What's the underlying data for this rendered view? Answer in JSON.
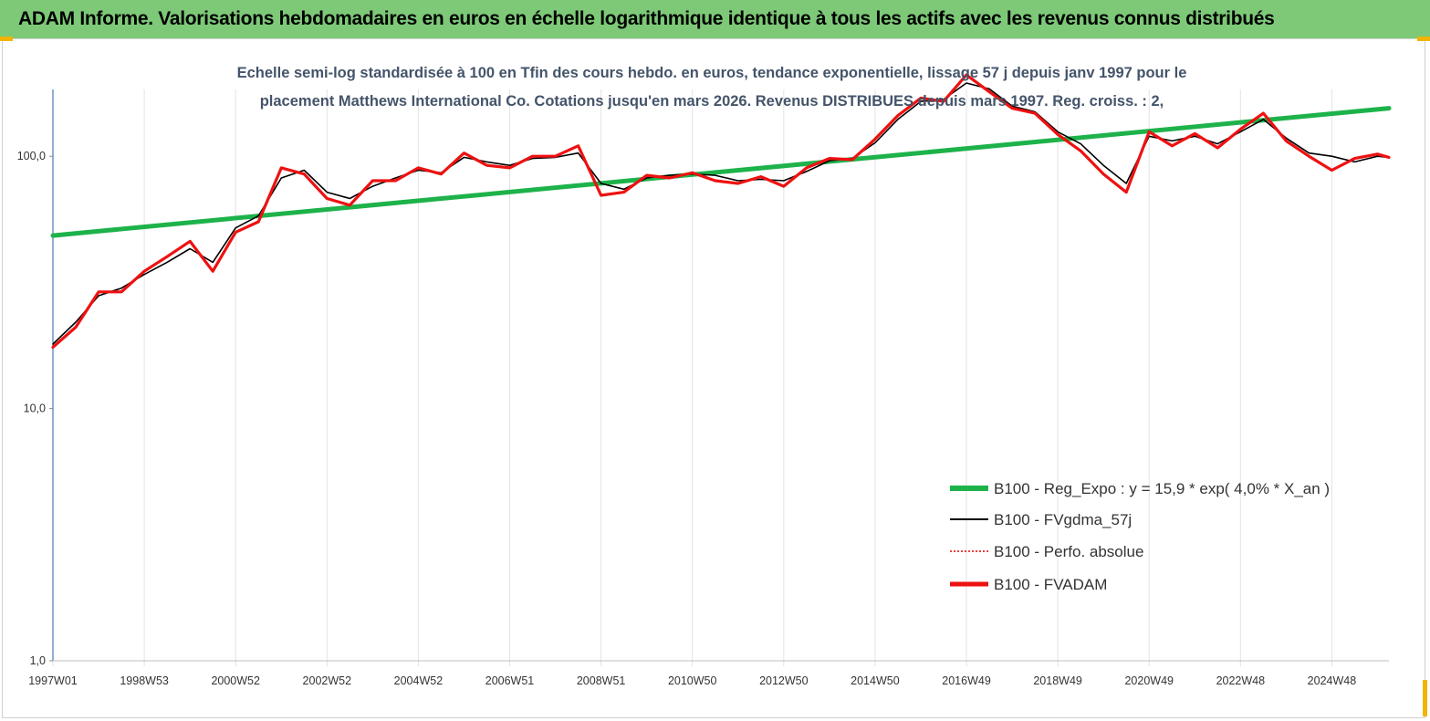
{
  "banner": {
    "title": "ADAM Informe. Valorisations hebdomadaires en euros en échelle logarithmique identique à tous les actifs avec les revenus connus distribués"
  },
  "colors": {
    "banner_bg": "#7dc978",
    "regression": "#1db24a",
    "smooth": "#000000",
    "perf": "#e00000",
    "fvadam": "#ee1111",
    "corner": "#f2b400"
  },
  "chart_data": {
    "type": "line",
    "title_lines": [
      "Echelle semi-log standardisée à 100 en Tfin des cours hebdo. en euros, tendance exponentielle, lissage 57 j depuis janv 1997 pour le",
      "placement Matthews International Co. Cotations jusqu'en mars 2026. Revenus DISTRIBUES depuis mars 1997. Reg. croiss. : 2,"
    ],
    "y_scale": "log",
    "ylim": [
      1,
      200
    ],
    "y_ticks": [
      {
        "value": 1,
        "label": "1,0"
      },
      {
        "value": 10,
        "label": "10,0"
      },
      {
        "value": 100,
        "label": "100,0"
      }
    ],
    "x_range_years": [
      1997.0,
      2026.25
    ],
    "x_ticks": [
      {
        "year": 1997.0,
        "label": "1997W01"
      },
      {
        "year": 1999.0,
        "label": "1998W53"
      },
      {
        "year": 2001.0,
        "label": "2000W52"
      },
      {
        "year": 2003.0,
        "label": "2002W52"
      },
      {
        "year": 2005.0,
        "label": "2004W52"
      },
      {
        "year": 2007.0,
        "label": "2006W51"
      },
      {
        "year": 2009.0,
        "label": "2008W51"
      },
      {
        "year": 2011.0,
        "label": "2010W50"
      },
      {
        "year": 2013.0,
        "label": "2012W50"
      },
      {
        "year": 2015.0,
        "label": "2014W50"
      },
      {
        "year": 2017.0,
        "label": "2016W49"
      },
      {
        "year": 2019.0,
        "label": "2018W49"
      },
      {
        "year": 2021.0,
        "label": "2020W49"
      },
      {
        "year": 2023.0,
        "label": "2022W48"
      },
      {
        "year": 2025.0,
        "label": "2024W48"
      }
    ],
    "grid": "vertical",
    "legend_position": "bottom-right",
    "series": [
      {
        "name": "B100 - Reg_Expo : y = 15,9 * exp( 4,0% *  X_an )",
        "key": "reg",
        "style": "thick-green",
        "x": [
          1997.0,
          2026.25
        ],
        "y": [
          48.5,
          155.0
        ]
      },
      {
        "name": "B100 - FVgdma_57j",
        "key": "smooth",
        "style": "thin-black",
        "x": [
          1997.0,
          1997.5,
          1998.0,
          1998.5,
          1999.0,
          1999.5,
          2000.0,
          2000.5,
          2001.0,
          2001.5,
          2002.0,
          2002.5,
          2003.0,
          2003.5,
          2004.0,
          2004.5,
          2005.0,
          2005.5,
          2006.0,
          2006.5,
          2007.0,
          2007.5,
          2008.0,
          2008.5,
          2009.0,
          2009.5,
          2010.0,
          2010.5,
          2011.0,
          2011.5,
          2012.0,
          2012.5,
          2013.0,
          2013.5,
          2014.0,
          2014.5,
          2015.0,
          2015.5,
          2016.0,
          2016.5,
          2017.0,
          2017.5,
          2018.0,
          2018.5,
          2019.0,
          2019.5,
          2020.0,
          2020.5,
          2021.0,
          2021.5,
          2022.0,
          2022.5,
          2023.0,
          2023.5,
          2024.0,
          2024.5,
          2025.0,
          2025.5,
          2026.0,
          2026.25
        ],
        "y": [
          18,
          22,
          28,
          30,
          34,
          38,
          43,
          38,
          52,
          58,
          82,
          88,
          72,
          68,
          76,
          82,
          88,
          86,
          99,
          95,
          92,
          98,
          99,
          103,
          78,
          74,
          82,
          84,
          85,
          84,
          80,
          81,
          80,
          87,
          96,
          98,
          113,
          140,
          165,
          168,
          195,
          185,
          158,
          150,
          125,
          112,
          92,
          78,
          120,
          115,
          120,
          112,
          125,
          140,
          118,
          103,
          100,
          95,
          100,
          99
        ]
      },
      {
        "name": "B100 - Perfo. absolue",
        "key": "perf",
        "style": "dotted-red",
        "x": [],
        "y": []
      },
      {
        "name": "B100 - FVADAM",
        "key": "fvadam",
        "style": "thick-red",
        "x": [
          1997.0,
          1997.5,
          1998.0,
          1998.5,
          1999.0,
          1999.5,
          2000.0,
          2000.5,
          2001.0,
          2001.5,
          2002.0,
          2002.5,
          2003.0,
          2003.5,
          2004.0,
          2004.5,
          2005.0,
          2005.5,
          2006.0,
          2006.5,
          2007.0,
          2007.5,
          2008.0,
          2008.5,
          2009.0,
          2009.5,
          2010.0,
          2010.5,
          2011.0,
          2011.5,
          2012.0,
          2012.5,
          2013.0,
          2013.5,
          2014.0,
          2014.5,
          2015.0,
          2015.5,
          2016.0,
          2016.5,
          2017.0,
          2017.5,
          2018.0,
          2018.5,
          2019.0,
          2019.5,
          2020.0,
          2020.5,
          2021.0,
          2021.5,
          2022.0,
          2022.5,
          2023.0,
          2023.5,
          2024.0,
          2024.5,
          2025.0,
          2025.5,
          2026.0,
          2026.25
        ],
        "y": [
          17.5,
          21,
          29,
          29,
          35,
          40,
          46,
          35,
          50,
          55,
          90,
          85,
          68,
          64,
          80,
          80,
          90,
          85,
          103,
          92,
          90,
          100,
          100,
          110,
          70,
          72,
          84,
          82,
          86,
          80,
          78,
          83,
          76,
          90,
          98,
          97,
          117,
          145,
          170,
          165,
          210,
          180,
          155,
          148,
          122,
          105,
          85,
          72,
          125,
          110,
          123,
          108,
          128,
          148,
          115,
          100,
          88,
          98,
          102,
          99
        ]
      }
    ]
  }
}
